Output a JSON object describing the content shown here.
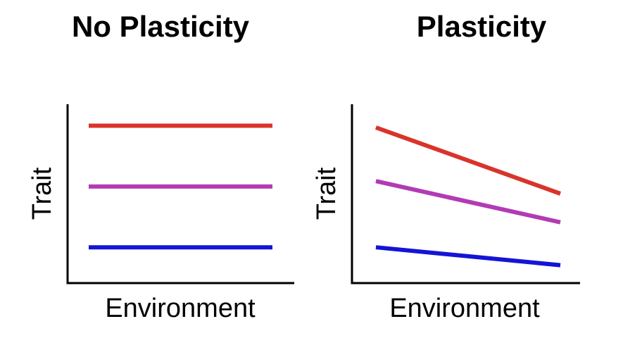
{
  "chart_data": [
    {
      "type": "line",
      "title": "No Plasticity",
      "xlabel": "Environment",
      "ylabel": "Trait",
      "x": [
        0,
        1
      ],
      "ylim": [
        0,
        1
      ],
      "grid": false,
      "series": [
        {
          "values": [
            0.88,
            0.88
          ],
          "color": "#d9342b"
        },
        {
          "values": [
            0.54,
            0.54
          ],
          "color": "#b23bb5"
        },
        {
          "values": [
            0.2,
            0.2
          ],
          "color": "#1414d6"
        }
      ]
    },
    {
      "type": "line",
      "title": "Plasticity",
      "xlabel": "Environment",
      "ylabel": "Trait",
      "x": [
        0,
        1
      ],
      "ylim": [
        0,
        1
      ],
      "grid": false,
      "series": [
        {
          "values": [
            0.87,
            0.5
          ],
          "color": "#d9342b"
        },
        {
          "values": [
            0.57,
            0.34
          ],
          "color": "#b23bb5"
        },
        {
          "values": [
            0.2,
            0.1
          ],
          "color": "#1414d6"
        }
      ]
    }
  ]
}
